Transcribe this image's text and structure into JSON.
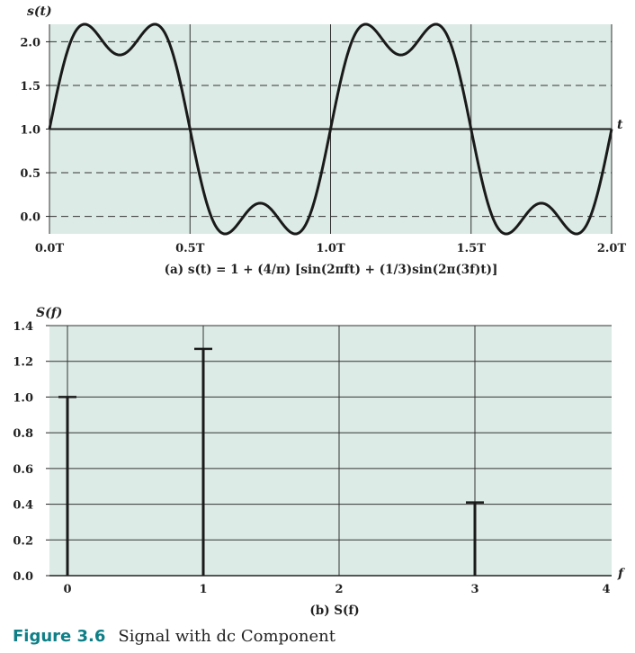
{
  "chart_data": [
    {
      "type": "line",
      "ylabel": "s(t)",
      "xlabel": "t",
      "caption": "(a) s(t) = 1 + (4/π) [sin(2πft) + (1/3)sin(2π(3f)t)]",
      "x_ticks": [
        "0.0T",
        "0.5T",
        "1.0T",
        "1.5T",
        "2.0T"
      ],
      "y_ticks": [
        "2.0",
        "1.5",
        "1.0",
        "0.5",
        "0.0"
      ],
      "xlim": [
        0,
        2
      ],
      "ylim": [
        -0.2,
        2.2
      ],
      "y_tick_values": [
        2.0,
        1.5,
        1.0,
        0.5,
        0.0
      ],
      "dashed_gridlines_y": [
        0.0,
        0.5,
        1.5,
        2.0
      ],
      "solid_baseline_y": 1.0,
      "x_unit": "T",
      "function": "1 + (4/π)[sin(2πt/T) + (1/3)sin(6πt/T)]",
      "series": [
        {
          "x": [
            0.0,
            0.125,
            0.25,
            0.375,
            0.5,
            0.625,
            0.75,
            0.875,
            1.0,
            1.125,
            1.25,
            1.375,
            1.5,
            1.625,
            1.75,
            1.875,
            2.0
          ],
          "y": [
            1.0,
            2.2,
            1.85,
            2.2,
            1.0,
            -0.2,
            0.15,
            -0.2,
            1.0,
            2.2,
            1.85,
            2.2,
            1.0,
            -0.2,
            0.15,
            -0.2,
            1.0
          ]
        }
      ],
      "colors": {
        "background": "#dcebe6",
        "line": "#1a1a1a"
      }
    },
    {
      "type": "bar",
      "ylabel": "S(f)",
      "xlabel": "f",
      "caption": "(b) S(f)",
      "categories": [
        "0",
        "1",
        "2",
        "3",
        "4"
      ],
      "x": [
        0,
        1,
        3
      ],
      "values": [
        1.0,
        1.27,
        0.41
      ],
      "xlim": [
        0,
        4
      ],
      "ylim": [
        0,
        1.4
      ],
      "y_ticks": [
        "1.4",
        "1.2",
        "1.0",
        "0.8",
        "0.6",
        "0.4",
        "0.2",
        "0.0"
      ],
      "y_tick_values": [
        1.4,
        1.2,
        1.0,
        0.8,
        0.6,
        0.4,
        0.2,
        0.0
      ],
      "grid": true,
      "colors": {
        "background": "#dcebe6",
        "line": "#1a1a1a"
      }
    }
  ],
  "figure": {
    "number": "Figure 3.6",
    "title": "Signal with dc Component"
  }
}
